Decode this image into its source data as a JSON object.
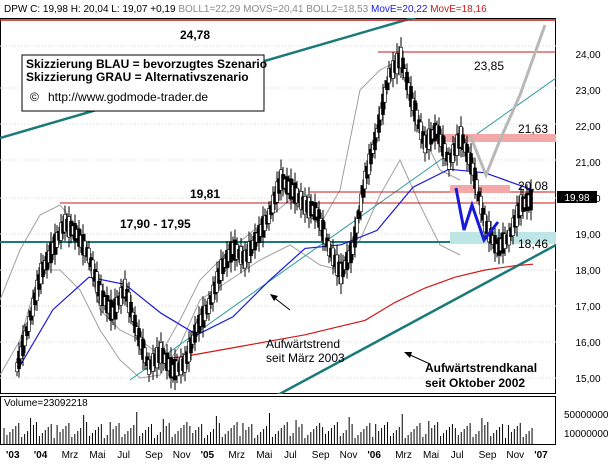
{
  "header": {
    "ticker_prefix": "DPW C: ",
    "close": "19,98",
    "high_label": "H: ",
    "high": "20,04",
    "low_label": "L: ",
    "low": "19,07",
    "change": "+0,19",
    "boll1": "BOLL1=22,29",
    "movs": "MOVS=20,41",
    "boll2": "BOLL2=18,53",
    "move_blue": "MovE=20,22",
    "move_red": "MovE=18,16"
  },
  "legend": {
    "line1": "Skizzierung BLAU = bevorzugtes Szenario",
    "line2": "Skizzierung GRAU = Alternativszenario",
    "copyright_symbol": "©",
    "url": "http://www.godmode-trader.de"
  },
  "volume": {
    "label": "Volume=23092218",
    "ticks": [
      "50000000",
      "10000000"
    ]
  },
  "chart_data": {
    "type": "line",
    "title": "",
    "xlabel": "",
    "ylabel": "",
    "ylim": [
      14.75,
      24.85
    ],
    "x_axis_labels": [
      "'03",
      "'04",
      "Mrz",
      "Mai",
      "Jul",
      "Sep",
      "Nov",
      "'05",
      "Mrz",
      "Mai",
      "Jul",
      "Sep",
      "Nov",
      "'06",
      "Mrz",
      "Mai",
      "Jul",
      "Sep",
      "Nov",
      "'07"
    ],
    "y_axis_ticks": [
      "15,00",
      "16,00",
      "17,00",
      "18,00",
      "19,00",
      "20,00",
      "21,00",
      "22,00",
      "23,00",
      "24,00"
    ],
    "current_price_label": "19,98",
    "levels": [
      {
        "label": "24,78",
        "value": 24.78
      },
      {
        "label": "23,85",
        "value": 23.85
      },
      {
        "label": "21,63",
        "value": 21.63
      },
      {
        "label": "20,08",
        "value": 20.08
      },
      {
        "label": "19,81",
        "value": 19.81
      },
      {
        "label": "18,46",
        "value": 18.46
      },
      {
        "label": "17,90 - 17,95",
        "value": 17.93
      }
    ],
    "annotations": [
      "Aufwärtstrend",
      "seit März 2003",
      "Aufwärtstrendkanal",
      "seit Oktober 2002"
    ],
    "series": [
      {
        "name": "DPW C",
        "x": [
          0.3,
          0.7,
          1.1,
          1.5,
          1.9,
          2.3,
          2.7,
          3.1,
          3.5,
          3.9,
          4.3,
          4.7,
          5.1,
          5.5,
          5.9,
          6.3,
          6.7,
          7.1,
          7.5,
          7.9,
          8.3,
          8.7,
          9.1,
          9.5,
          9.9,
          10.3,
          10.7,
          11.1,
          11.5,
          11.9,
          12.3,
          12.7,
          13.1,
          13.5,
          13.9,
          14.3,
          14.7,
          15.1,
          15.5,
          15.9,
          16.3,
          16.7,
          17.1,
          17.5
        ],
        "y": [
          15.3,
          16.5,
          17.9,
          18.6,
          19.3,
          19.0,
          18.4,
          17.3,
          16.8,
          17.5,
          16.3,
          15.3,
          15.7,
          15.2,
          15.4,
          16.4,
          17.0,
          18.0,
          18.6,
          18.3,
          18.9,
          19.5,
          20.5,
          20.2,
          19.8,
          19.6,
          18.6,
          17.9,
          18.6,
          20.5,
          21.8,
          23.4,
          23.9,
          22.6,
          21.5,
          21.9,
          21.0,
          21.7,
          20.8,
          19.3,
          18.6,
          18.9,
          19.8,
          19.98
        ]
      },
      {
        "name": "MovE=20,22",
        "x": [
          0.3,
          1.5,
          2.7,
          3.9,
          5.1,
          6.3,
          7.5,
          8.7,
          9.9,
          11.1,
          12.3,
          13.5,
          14.7,
          15.9,
          17.5
        ],
        "y": [
          15.2,
          16.9,
          17.8,
          17.6,
          16.8,
          16.2,
          16.7,
          17.7,
          18.6,
          18.7,
          19.1,
          20.3,
          20.8,
          20.7,
          20.22
        ]
      },
      {
        "name": "MovE=18,16",
        "x": [
          4.9,
          5.9,
          6.9,
          7.9,
          8.9,
          9.9,
          10.9,
          11.9,
          12.9,
          13.9,
          14.9,
          15.9,
          16.9,
          17.5
        ],
        "y": [
          15.5,
          15.6,
          15.75,
          15.9,
          16.05,
          16.2,
          16.4,
          16.6,
          17.1,
          17.5,
          17.8,
          18.0,
          18.12,
          18.16
        ]
      }
    ]
  }
}
